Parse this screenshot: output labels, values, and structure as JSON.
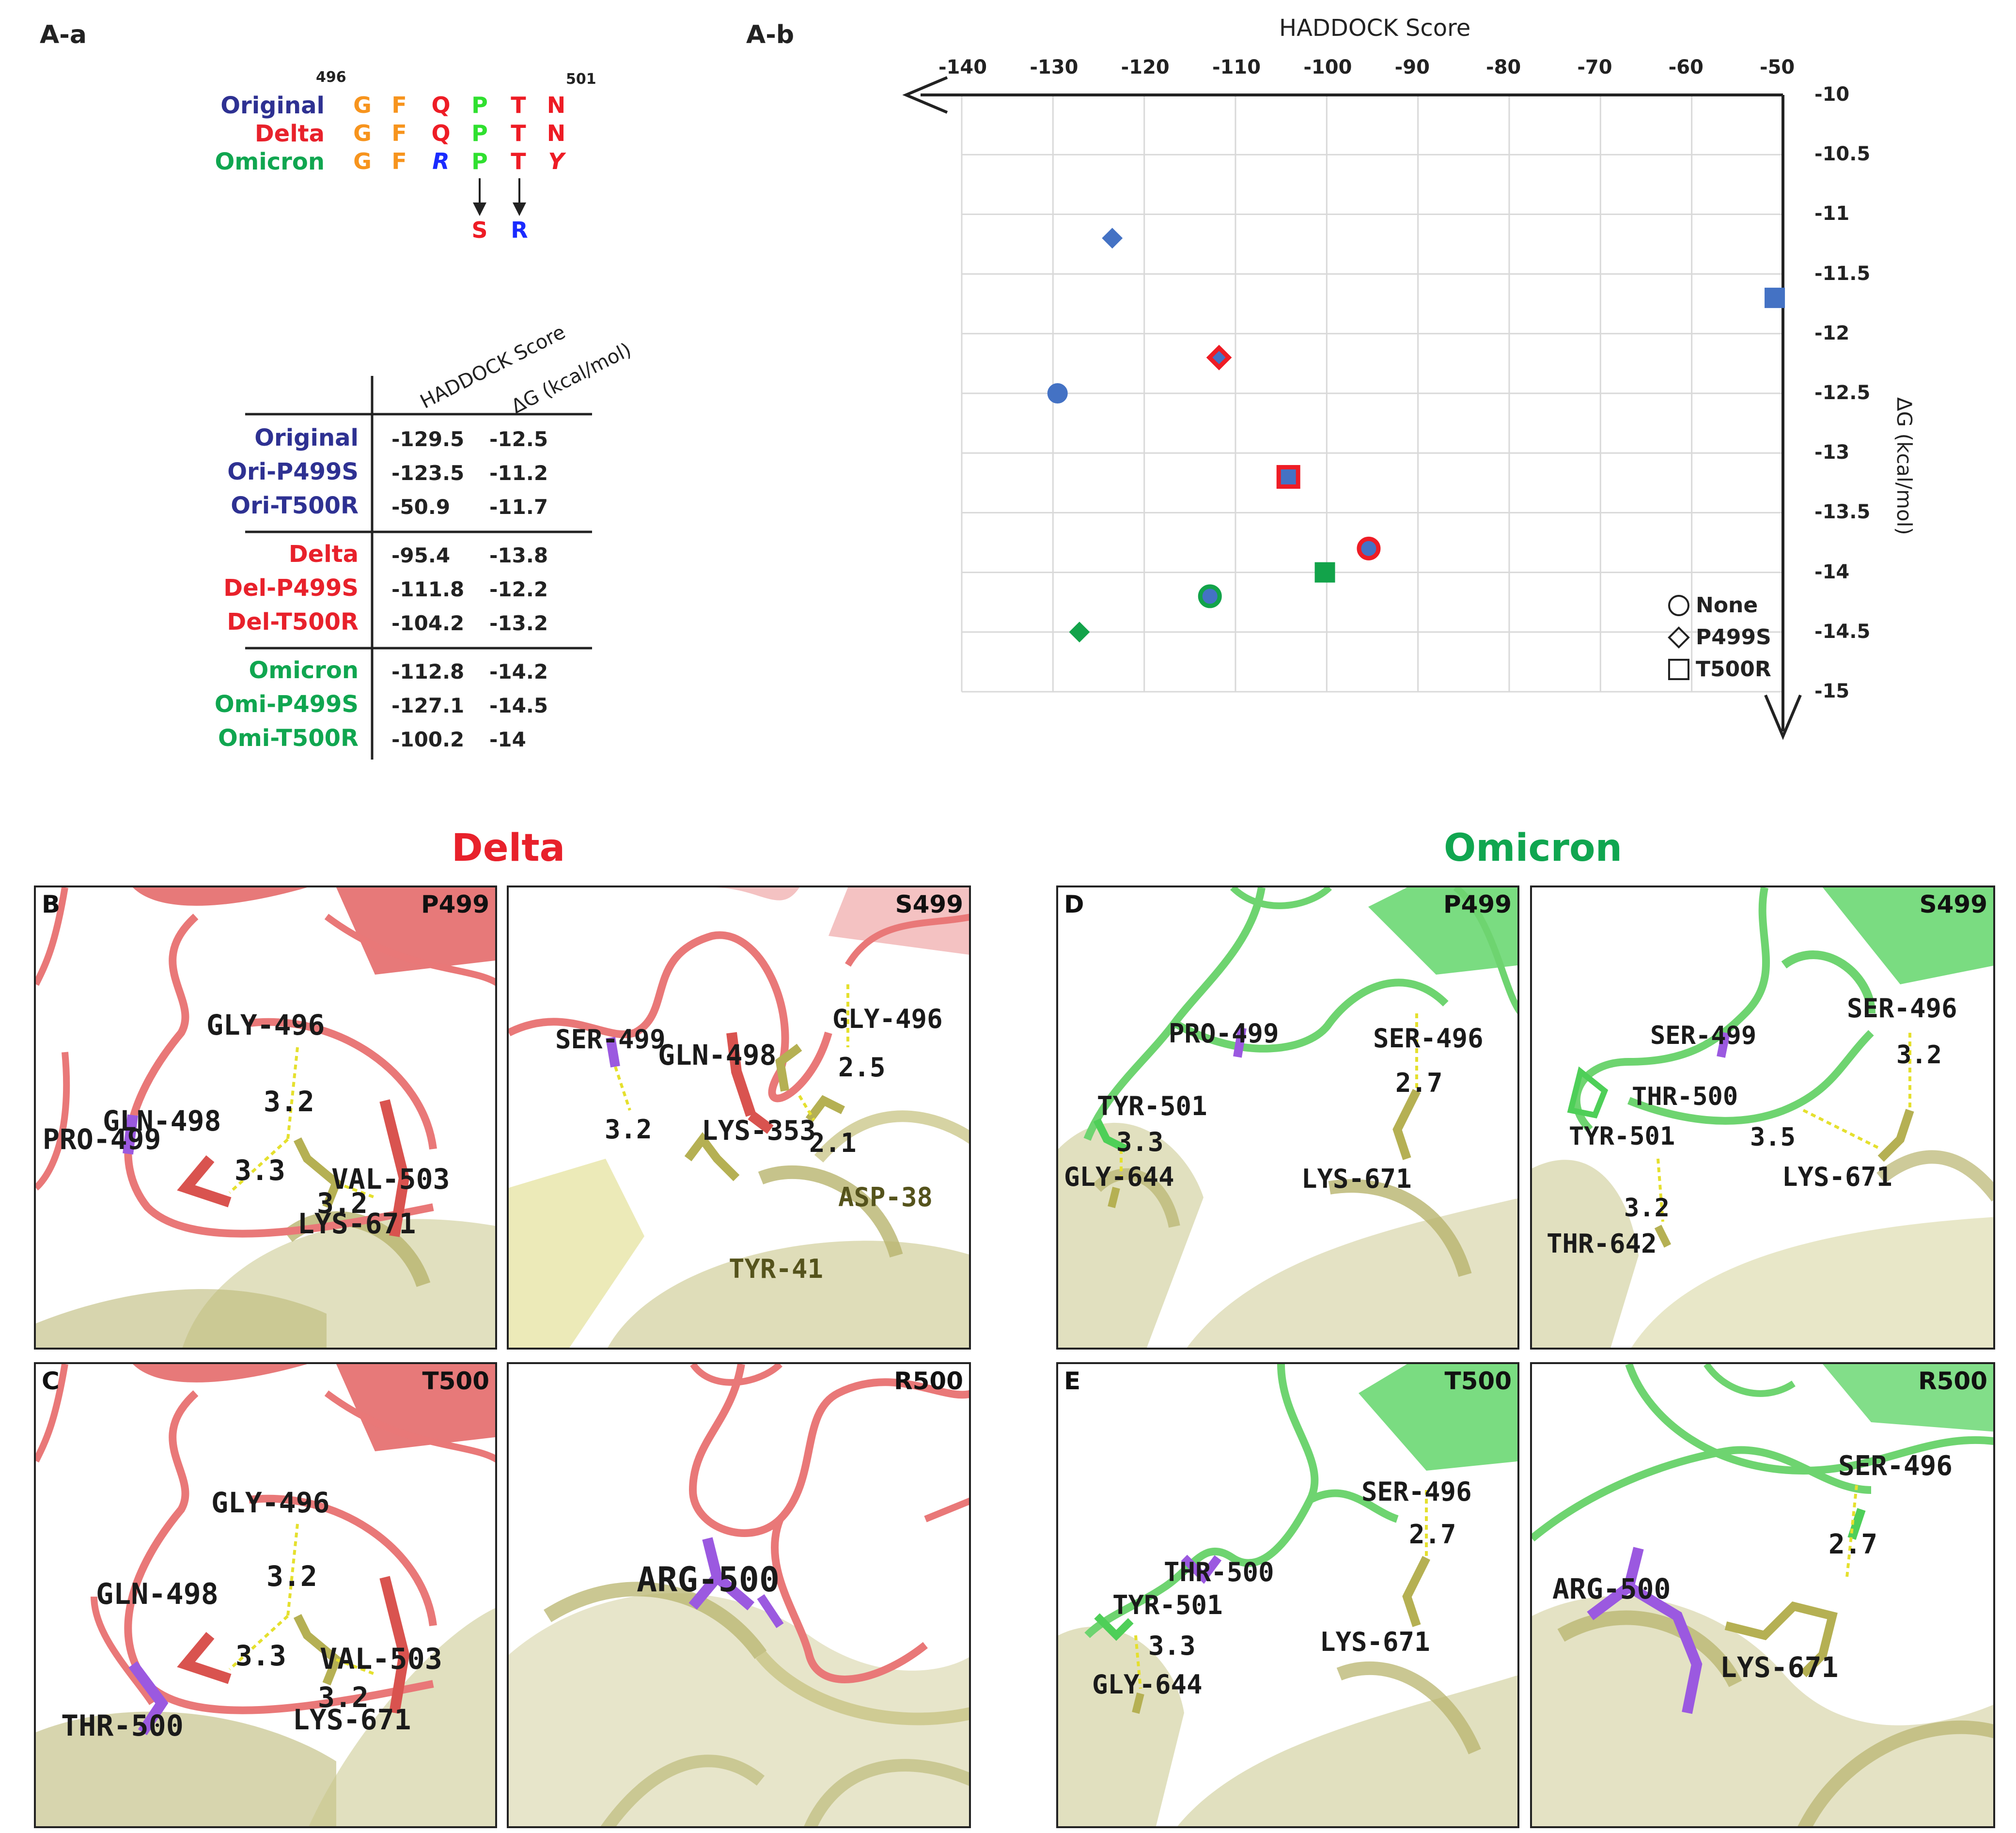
{
  "colors": {
    "original": "#2e3192",
    "delta": "#e8212b",
    "omicron": "#10a650",
    "plot_blue": "#4472c4",
    "plot_red": "#ee1c25",
    "plot_green": "#12a34a",
    "aa_orange": "#f7941d",
    "aa_red": "#ee1c25",
    "aa_green": "#2fe02f",
    "aa_blue": "#1a2bff"
  },
  "panel_labels": {
    "a_a": "A-a",
    "a_b": "A-b"
  },
  "sequence": {
    "pos_start": "496",
    "pos_end": "501",
    "rows": [
      {
        "name": "Original",
        "residues": [
          "G",
          "F",
          "Q",
          "P",
          "T",
          "N"
        ]
      },
      {
        "name": "Delta",
        "residues": [
          "G",
          "F",
          "Q",
          "P",
          "T",
          "N"
        ]
      },
      {
        "name": "Omicron",
        "residues": [
          "G",
          "F",
          "R",
          "P",
          "T",
          "Y"
        ]
      }
    ],
    "mutation_p": "S",
    "mutation_t": "R"
  },
  "table": {
    "header_score": "HADDOCK Score",
    "header_dg": "ΔG (kcal/mol)",
    "rows": [
      {
        "name": "Original",
        "score": "-129.5",
        "dg": "-12.5"
      },
      {
        "name": "Ori-P499S",
        "score": "-123.5",
        "dg": "-11.2"
      },
      {
        "name": "Ori-T500R",
        "score": "-50.9",
        "dg": "-11.7"
      },
      {
        "name": "Delta",
        "score": "-95.4",
        "dg": "-13.8"
      },
      {
        "name": "Del-P499S",
        "score": "-111.8",
        "dg": "-12.2"
      },
      {
        "name": "Del-T500R",
        "score": "-104.2",
        "dg": "-13.2"
      },
      {
        "name": "Omicron",
        "score": "-112.8",
        "dg": "-14.2"
      },
      {
        "name": "Omi-P499S",
        "score": "-127.1",
        "dg": "-14.5"
      },
      {
        "name": "Omi-T500R",
        "score": "-100.2",
        "dg": "-14"
      }
    ]
  },
  "chart_data": {
    "type": "scatter",
    "title": "",
    "xlabel": "HADDOCK Score",
    "ylabel": "ΔG (kcal/mol)",
    "xlim": [
      -140,
      -50
    ],
    "ylim": [
      -15,
      -10
    ],
    "x_ticks": [
      "-140",
      "-130",
      "-120",
      "-110",
      "-100",
      "-90",
      "-80",
      "-70",
      "-60",
      "-50"
    ],
    "y_ticks": [
      "-10",
      "-10.5",
      "-11",
      "-11.5",
      "-12",
      "-12.5",
      "-13",
      "-13.5",
      "-14",
      "-14.5",
      "-15"
    ],
    "grid": true,
    "legend": {
      "placement": "bottom-right",
      "entries": [
        {
          "label": "None",
          "marker": "circle"
        },
        {
          "label": "P499S",
          "marker": "diamond"
        },
        {
          "label": "T500R",
          "marker": "square"
        }
      ]
    },
    "points": [
      {
        "name": "Original",
        "x": -129.5,
        "y": -12.5,
        "marker": "circle",
        "fill": "#4472c4",
        "edge": "#4472c4"
      },
      {
        "name": "Ori-P499S",
        "x": -123.5,
        "y": -11.2,
        "marker": "diamond",
        "fill": "#4472c4",
        "edge": "#4472c4"
      },
      {
        "name": "Ori-T500R",
        "x": -50.9,
        "y": -11.7,
        "marker": "square",
        "fill": "#4472c4",
        "edge": "#4472c4"
      },
      {
        "name": "Delta",
        "x": -95.4,
        "y": -13.8,
        "marker": "circle",
        "fill": "#4472c4",
        "edge": "#ee1c25"
      },
      {
        "name": "Del-P499S",
        "x": -111.8,
        "y": -12.2,
        "marker": "diamond",
        "fill": "#4472c4",
        "edge": "#ee1c25"
      },
      {
        "name": "Del-T500R",
        "x": -104.2,
        "y": -13.2,
        "marker": "square",
        "fill": "#4472c4",
        "edge": "#ee1c25"
      },
      {
        "name": "Omicron",
        "x": -112.8,
        "y": -14.2,
        "marker": "circle",
        "fill": "#4472c4",
        "edge": "#12a34a"
      },
      {
        "name": "Omi-P499S",
        "x": -127.1,
        "y": -14.5,
        "marker": "diamond",
        "fill": "#12a34a",
        "edge": "#12a34a"
      },
      {
        "name": "Omi-T500R",
        "x": -100.2,
        "y": -14,
        "marker": "square",
        "fill": "#12a34a",
        "edge": "#12a34a"
      }
    ]
  },
  "structures": {
    "delta_title": "Delta",
    "omicron_title": "Omicron",
    "panels": [
      {
        "letter": "B",
        "tag": "P499",
        "labels": [
          "GLY-496",
          "GLN-498",
          "PRO-499",
          "VAL-503",
          "LYS-671"
        ],
        "distances": [
          "3.2",
          "3.3",
          "3.2"
        ]
      },
      {
        "letter": "",
        "tag": "S499",
        "labels": [
          "SER-499",
          "GLN-498",
          "GLY-496",
          "LYS-353",
          "ASP-38",
          "TYR-41"
        ],
        "distances": [
          "2.5",
          "3.2",
          "2.1"
        ]
      },
      {
        "letter": "C",
        "tag": "T500",
        "labels": [
          "GLY-496",
          "GLN-498",
          "VAL-503",
          "THR-500",
          "LYS-671"
        ],
        "distances": [
          "3.2",
          "3.3",
          "3.2"
        ]
      },
      {
        "letter": "",
        "tag": "R500",
        "labels": [
          "ARG-500"
        ],
        "distances": []
      },
      {
        "letter": "D",
        "tag": "P499",
        "labels": [
          "PRO-499",
          "SER-496",
          "TYR-501",
          "GLY-644",
          "LYS-671"
        ],
        "distances": [
          "2.7",
          "3.3"
        ]
      },
      {
        "letter": "",
        "tag": "S499",
        "labels": [
          "SER-496",
          "SER-499",
          "THR-500",
          "TYR-501",
          "LYS-671",
          "THR-642"
        ],
        "distances": [
          "3.2",
          "3.5",
          "3.2"
        ]
      },
      {
        "letter": "E",
        "tag": "T500",
        "labels": [
          "SER-496",
          "THR-500",
          "TYR-501",
          "GLY-644",
          "LYS-671"
        ],
        "distances": [
          "2.7",
          "3.3"
        ]
      },
      {
        "letter": "",
        "tag": "R500",
        "labels": [
          "SER-496",
          "ARG-500",
          "LYS-671"
        ],
        "distances": [
          "2.7"
        ]
      }
    ]
  }
}
